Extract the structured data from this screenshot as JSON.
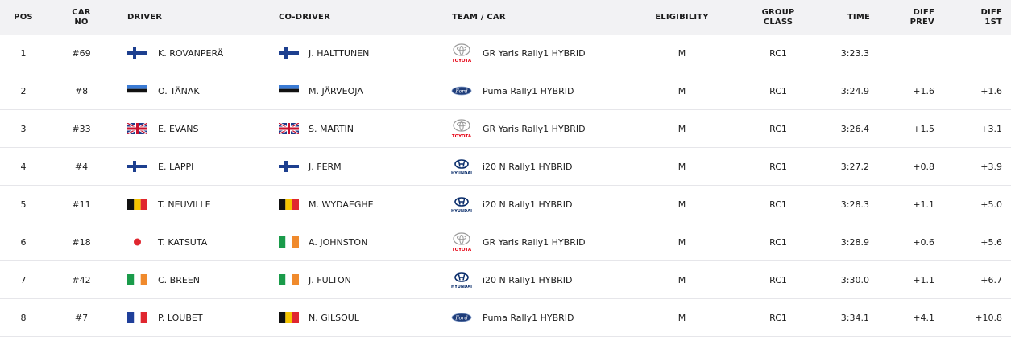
{
  "headers": {
    "pos": "POS",
    "car_no": "CAR\nNO",
    "driver": "DRIVER",
    "co_driver": "CO-DRIVER",
    "team_car": "TEAM / CAR",
    "eligibility": "ELIGIBILITY",
    "group_class": "GROUP\nCLASS",
    "time": "TIME",
    "diff_prev": "DIFF\nPREV",
    "diff_1st": "DIFF\n1ST"
  },
  "colors": {
    "header_bg": "#f2f2f4",
    "accent": "#1c2a4a",
    "toyota_red": "#e60012",
    "ford_blue": "#1f3d7a",
    "hyundai_blue": "#0a2d6b"
  },
  "rows": [
    {
      "pos": "1",
      "car_no": "#69",
      "driver": "K. ROVANPERÄ",
      "driver_flag": "finland-flag-icon",
      "co_driver": "J. HALTTUNEN",
      "co_driver_flag": "finland-flag-icon",
      "team_logo": "toyota-logo-icon",
      "logo_text": "TOYOTA",
      "car": "GR Yaris Rally1 HYBRID",
      "eligibility": "M",
      "group_class": "RC1",
      "time": "3:23.3",
      "diff_prev": "",
      "diff_1st": ""
    },
    {
      "pos": "2",
      "car_no": "#8",
      "driver": "O. TÄNAK",
      "driver_flag": "estonia-flag-icon",
      "co_driver": "M. JÄRVEOJA",
      "co_driver_flag": "estonia-flag-icon",
      "team_logo": "ford-logo-icon",
      "logo_text": "Ford",
      "car": "Puma Rally1 HYBRID",
      "eligibility": "M",
      "group_class": "RC1",
      "time": "3:24.9",
      "diff_prev": "+1.6",
      "diff_1st": "+1.6"
    },
    {
      "pos": "3",
      "car_no": "#33",
      "driver": "E. EVANS",
      "driver_flag": "uk-flag-icon",
      "co_driver": "S. MARTIN",
      "co_driver_flag": "uk-flag-icon",
      "team_logo": "toyota-logo-icon",
      "logo_text": "TOYOTA",
      "car": "GR Yaris Rally1 HYBRID",
      "eligibility": "M",
      "group_class": "RC1",
      "time": "3:26.4",
      "diff_prev": "+1.5",
      "diff_1st": "+3.1"
    },
    {
      "pos": "4",
      "car_no": "#4",
      "driver": "E. LAPPI",
      "driver_flag": "finland-flag-icon",
      "co_driver": "J. FERM",
      "co_driver_flag": "finland-flag-icon",
      "team_logo": "hyundai-logo-icon",
      "logo_text": "HYUNDAI",
      "car": "i20 N Rally1 HYBRID",
      "eligibility": "M",
      "group_class": "RC1",
      "time": "3:27.2",
      "diff_prev": "+0.8",
      "diff_1st": "+3.9"
    },
    {
      "pos": "5",
      "car_no": "#11",
      "driver": "T. NEUVILLE",
      "driver_flag": "belgium-flag-icon",
      "co_driver": "M. WYDAEGHE",
      "co_driver_flag": "belgium-flag-icon",
      "team_logo": "hyundai-logo-icon",
      "logo_text": "HYUNDAI",
      "car": "i20 N Rally1 HYBRID",
      "eligibility": "M",
      "group_class": "RC1",
      "time": "3:28.3",
      "diff_prev": "+1.1",
      "diff_1st": "+5.0"
    },
    {
      "pos": "6",
      "car_no": "#18",
      "driver": "T. KATSUTA",
      "driver_flag": "japan-flag-icon",
      "co_driver": "A. JOHNSTON",
      "co_driver_flag": "ireland-flag-icon",
      "team_logo": "toyota-logo-icon",
      "logo_text": "TOYOTA",
      "car": "GR Yaris Rally1 HYBRID",
      "eligibility": "M",
      "group_class": "RC1",
      "time": "3:28.9",
      "diff_prev": "+0.6",
      "diff_1st": "+5.6"
    },
    {
      "pos": "7",
      "car_no": "#42",
      "driver": "C. BREEN",
      "driver_flag": "ireland-flag-icon",
      "co_driver": "J. FULTON",
      "co_driver_flag": "ireland-flag-icon",
      "team_logo": "hyundai-logo-icon",
      "logo_text": "HYUNDAI",
      "car": "i20 N Rally1 HYBRID",
      "eligibility": "M",
      "group_class": "RC1",
      "time": "3:30.0",
      "diff_prev": "+1.1",
      "diff_1st": "+6.7"
    },
    {
      "pos": "8",
      "car_no": "#7",
      "driver": "P. LOUBET",
      "driver_flag": "france-flag-icon",
      "co_driver": "N. GILSOUL",
      "co_driver_flag": "belgium-flag-icon",
      "team_logo": "ford-logo-icon",
      "logo_text": "Ford",
      "car": "Puma Rally1 HYBRID",
      "eligibility": "M",
      "group_class": "RC1",
      "time": "3:34.1",
      "diff_prev": "+4.1",
      "diff_1st": "+10.8"
    }
  ]
}
